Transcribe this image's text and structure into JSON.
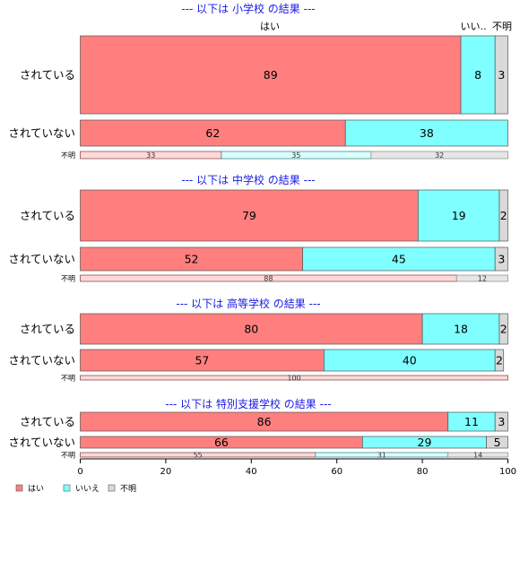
{
  "chart_data": {
    "type": "bar",
    "orientation": "horizontal",
    "stacked": true,
    "xlim": [
      0,
      100
    ],
    "x_ticks": [
      "0",
      "20",
      "40",
      "60",
      "80",
      "100"
    ],
    "column_headers": [
      "はい",
      "いい..",
      "不明"
    ],
    "legend": {
      "placement": "bottom-left",
      "entries": [
        {
          "name": "はい",
          "color": "#ff7f7f"
        },
        {
          "name": "いいえ",
          "color": "#7fffff"
        },
        {
          "name": "不明",
          "color": "#d9d9d9"
        }
      ]
    },
    "panels": [
      {
        "title": "--- 以下は 小学校 の結果 ---",
        "rows": [
          {
            "label": "されている",
            "values": [
              89,
              8,
              3
            ]
          },
          {
            "label": "されていない",
            "values": [
              62,
              38,
              0
            ]
          },
          {
            "label": "不明",
            "values": [
              33,
              35,
              32
            ]
          }
        ]
      },
      {
        "title": "--- 以下は 中学校 の結果 ---",
        "rows": [
          {
            "label": "されている",
            "values": [
              79,
              19,
              2
            ]
          },
          {
            "label": "されていない",
            "values": [
              52,
              45,
              3
            ]
          },
          {
            "label": "不明",
            "values": [
              88,
              0,
              12
            ]
          }
        ]
      },
      {
        "title": "--- 以下は 高等学校 の結果 ---",
        "rows": [
          {
            "label": "されている",
            "values": [
              80,
              18,
              2
            ]
          },
          {
            "label": "されていない",
            "values": [
              57,
              40,
              2
            ]
          },
          {
            "label": "不明",
            "values": [
              100,
              0,
              0
            ]
          }
        ]
      },
      {
        "title": "--- 以下は 特別支援学校 の結果 ---",
        "rows": [
          {
            "label": "されている",
            "values": [
              86,
              11,
              3
            ]
          },
          {
            "label": "されていない",
            "values": [
              66,
              29,
              5
            ]
          },
          {
            "label": "不明",
            "values": [
              55,
              31,
              14
            ]
          }
        ]
      }
    ]
  }
}
